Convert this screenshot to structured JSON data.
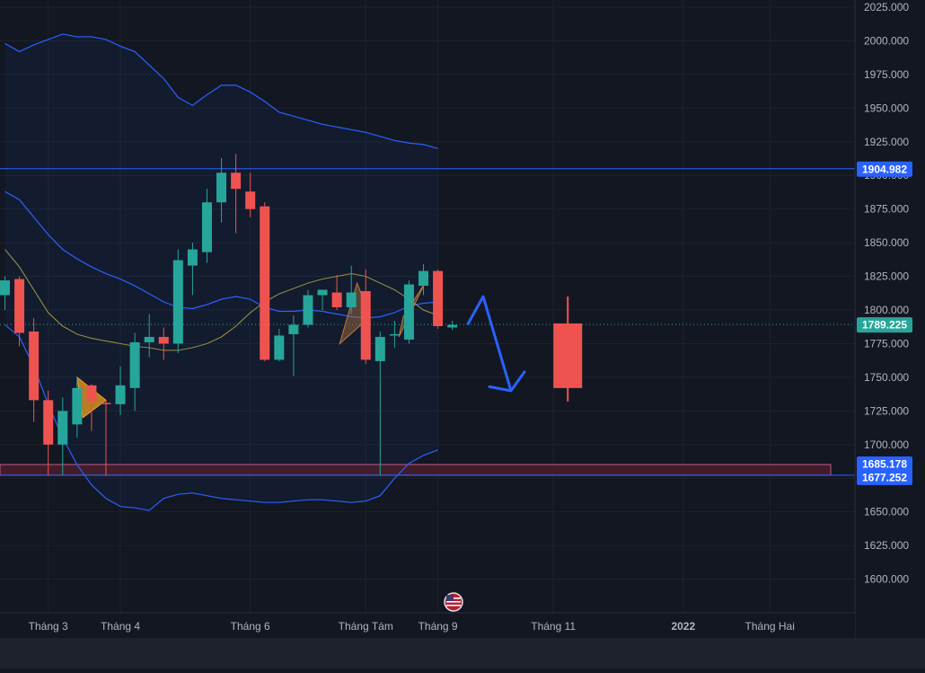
{
  "chart_data": {
    "type": "candlestick",
    "title": "",
    "interval": "weekly",
    "y_axis": {
      "side": "right",
      "range": [
        1575,
        2025
      ],
      "ticks": [
        "2025.000",
        "2000.000",
        "1975.000",
        "1950.000",
        "1925.000",
        "1900.000",
        "1875.000",
        "1850.000",
        "1825.000",
        "1800.000",
        "1775.000",
        "1750.000",
        "1725.000",
        "1700.000",
        "1675.000",
        "1650.000",
        "1625.000",
        "1600.000"
      ],
      "tick_values": [
        2025,
        2000,
        1975,
        1950,
        1925,
        1900,
        1875,
        1850,
        1825,
        1800,
        1775,
        1750,
        1725,
        1700,
        1675,
        1650,
        1625,
        1600
      ]
    },
    "x_axis": {
      "labels": [
        "Tháng 3",
        "Tháng 4",
        "Tháng 6",
        "Tháng Tám",
        "Tháng 9",
        "Tháng 11",
        "2022",
        "Tháng Hai"
      ],
      "label_bars": [
        3,
        8,
        17,
        25,
        30,
        38,
        47,
        53
      ],
      "bold_labels": [
        "2022"
      ]
    },
    "candles": [
      {
        "o": 1811,
        "h": 1825,
        "l": 1800,
        "c": 1822
      },
      {
        "o": 1823,
        "h": 1825,
        "l": 1773,
        "c": 1783
      },
      {
        "o": 1784,
        "h": 1794,
        "l": 1717,
        "c": 1733
      },
      {
        "o": 1733,
        "h": 1740,
        "l": 1677,
        "c": 1700
      },
      {
        "o": 1700,
        "h": 1735,
        "l": 1677,
        "c": 1725
      },
      {
        "o": 1715,
        "h": 1750,
        "l": 1705,
        "c": 1742
      },
      {
        "o": 1744,
        "h": 1745,
        "l": 1710,
        "c": 1732
      },
      {
        "o": 1731,
        "h": 1733,
        "l": 1677,
        "c": 1730
      },
      {
        "o": 1730,
        "h": 1758,
        "l": 1722,
        "c": 1744
      },
      {
        "o": 1742,
        "h": 1783,
        "l": 1725,
        "c": 1776
      },
      {
        "o": 1776,
        "h": 1797,
        "l": 1765,
        "c": 1780
      },
      {
        "o": 1780,
        "h": 1787,
        "l": 1763,
        "c": 1775
      },
      {
        "o": 1775,
        "h": 1845,
        "l": 1768,
        "c": 1837
      },
      {
        "o": 1833,
        "h": 1850,
        "l": 1811,
        "c": 1845
      },
      {
        "o": 1843,
        "h": 1890,
        "l": 1835,
        "c": 1880
      },
      {
        "o": 1880,
        "h": 1913,
        "l": 1865,
        "c": 1902
      },
      {
        "o": 1902,
        "h": 1916,
        "l": 1857,
        "c": 1890
      },
      {
        "o": 1888,
        "h": 1902,
        "l": 1869,
        "c": 1875
      },
      {
        "o": 1877,
        "h": 1880,
        "l": 1762,
        "c": 1763
      },
      {
        "o": 1763,
        "h": 1786,
        "l": 1762,
        "c": 1781
      },
      {
        "o": 1782,
        "h": 1796,
        "l": 1751,
        "c": 1789
      },
      {
        "o": 1789,
        "h": 1815,
        "l": 1787,
        "c": 1811
      },
      {
        "o": 1811,
        "h": 1815,
        "l": 1800,
        "c": 1815
      },
      {
        "o": 1813,
        "h": 1826,
        "l": 1800,
        "c": 1802
      },
      {
        "o": 1802,
        "h": 1833,
        "l": 1797,
        "c": 1813
      },
      {
        "o": 1814,
        "h": 1830,
        "l": 1760,
        "c": 1763
      },
      {
        "o": 1762,
        "h": 1784,
        "l": 1677,
        "c": 1780
      },
      {
        "o": 1781,
        "h": 1792,
        "l": 1772,
        "c": 1782
      },
      {
        "o": 1778,
        "h": 1822,
        "l": 1775,
        "c": 1819
      },
      {
        "o": 1818,
        "h": 1834,
        "l": 1811,
        "c": 1829
      },
      {
        "o": 1829,
        "h": 1830,
        "l": 1786,
        "c": 1788
      },
      {
        "o": 1787,
        "h": 1792,
        "l": 1785,
        "c": 1789
      }
    ],
    "projection_candle": {
      "bar": 39,
      "o": 1790,
      "h": 1810,
      "l": 1732,
      "c": 1742
    },
    "bollinger": {
      "upper": [
        1998,
        1992,
        1997,
        2001,
        2005,
        2003,
        2003,
        2001,
        1996,
        1992,
        1982,
        1972,
        1958,
        1952,
        1960,
        1967,
        1967,
        1962,
        1955,
        1947,
        1944,
        1941,
        1938,
        1936,
        1934,
        1932,
        1929,
        1926,
        1924,
        1923,
        1920
      ],
      "middle": [
        1888,
        1882,
        1869,
        1856,
        1845,
        1838,
        1832,
        1827,
        1823,
        1818,
        1812,
        1806,
        1802,
        1801,
        1804,
        1808,
        1810,
        1808,
        1802,
        1799,
        1799,
        1800,
        1799,
        1797,
        1795,
        1794,
        1795,
        1798,
        1803,
        1805,
        1806
      ],
      "lower": [
        1789,
        1780,
        1758,
        1730,
        1705,
        1685,
        1670,
        1660,
        1654,
        1653,
        1651,
        1660,
        1663,
        1664,
        1662,
        1660,
        1659,
        1658,
        1657,
        1657,
        1658,
        1659,
        1659,
        1658,
        1657,
        1658,
        1662,
        1675,
        1686,
        1692,
        1696
      ]
    },
    "ma_yellow": [
      1845,
      1832,
      1815,
      1798,
      1788,
      1782,
      1779,
      1777,
      1775,
      1773,
      1772,
      1770,
      1770,
      1772,
      1775,
      1780,
      1788,
      1798,
      1806,
      1812,
      1816,
      1820,
      1823,
      1825,
      1827,
      1825,
      1820,
      1815,
      1808,
      1800,
      1796
    ],
    "horizontal_levels": [
      {
        "value": 1904.982,
        "label": "1904.982",
        "color": "#2962ff"
      },
      {
        "value": 1789.225,
        "label": "1789.225",
        "color": "#26a69a",
        "style": "dotted"
      },
      {
        "value": 1685.178,
        "label": "1685.178",
        "color": "#2962ff"
      },
      {
        "value": 1677.252,
        "label": "1677.252",
        "color": "#2962ff"
      }
    ],
    "support_zone": {
      "top": 1685.178,
      "bottom": 1677.252,
      "color": "#4a1e2c"
    },
    "colors": {
      "background": "#131722",
      "up": "#26a69a",
      "down": "#ef5350",
      "bollinger": "#2962ff",
      "ma": "#a09a3c",
      "arrow": "#2962ff",
      "grid": "#1e222d",
      "axis_text": "#b2b5be",
      "zone_border": "#c05a8a"
    },
    "flag_icon": "us-flag-icon",
    "grid": true,
    "legend": "none"
  }
}
